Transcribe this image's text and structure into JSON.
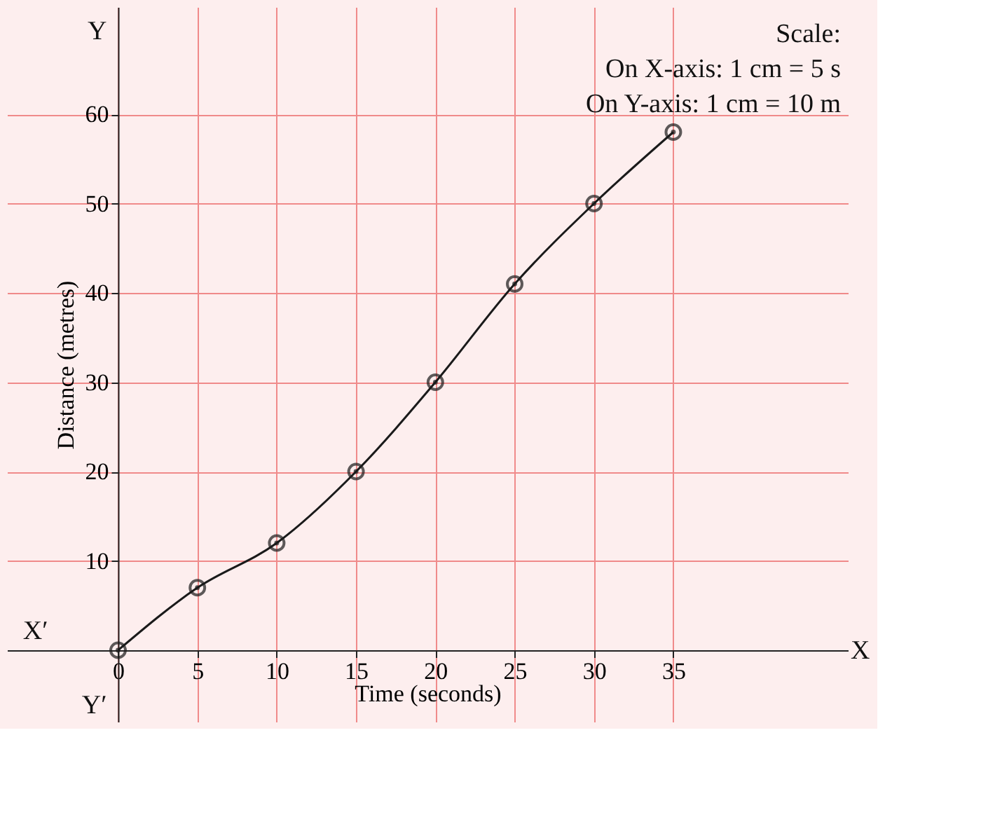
{
  "chart_data": {
    "type": "line",
    "xlabel": "Time (seconds)",
    "ylabel": "Distance (metres)",
    "x": [
      0,
      5,
      10,
      15,
      20,
      25,
      30,
      35
    ],
    "series": [
      {
        "color": "#1a1a1a",
        "values": [
          0,
          7,
          12,
          20,
          30,
          41,
          50,
          58
        ]
      }
    ],
    "xlim": [
      -7,
      46
    ],
    "ylim": [
      -8,
      72
    ],
    "xticks": [
      0,
      5,
      10,
      15,
      20,
      25,
      30,
      35
    ],
    "yticks": [
      10,
      20,
      30,
      40,
      50,
      60
    ],
    "grid": true,
    "marker": "circle",
    "line_style": "solid",
    "annotations": [
      "Scale:",
      "On X-axis: 1 cm = 5 s",
      "On Y-axis: 1 cm = 10 m",
      "X",
      "X′",
      "Y",
      "Y′"
    ]
  }
}
